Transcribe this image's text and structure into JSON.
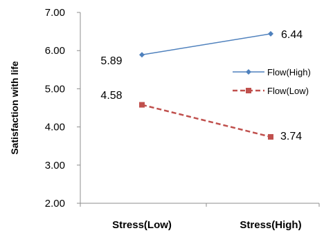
{
  "chart_data": {
    "type": "line",
    "categories": [
      "Stress(Low)",
      "Stress(High)"
    ],
    "series": [
      {
        "name": "Flow(High)",
        "values": [
          5.89,
          6.44
        ],
        "color": "#4f81bd",
        "marker": "diamond",
        "dash": "solid"
      },
      {
        "name": "Flow(Low)",
        "values": [
          4.58,
          3.74
        ],
        "color": "#c0504d",
        "marker": "square",
        "dash": "dashed"
      }
    ],
    "data_labels": [
      "5.89",
      "6.44",
      "4.58",
      "3.74"
    ],
    "title": "",
    "xlabel": "",
    "ylabel": "Satisfaction with life",
    "ylim": [
      2,
      7
    ],
    "yticks": [
      "2.00",
      "3.00",
      "4.00",
      "5.00",
      "6.00",
      "7.00"
    ],
    "grid": false,
    "legend_position": "right"
  }
}
